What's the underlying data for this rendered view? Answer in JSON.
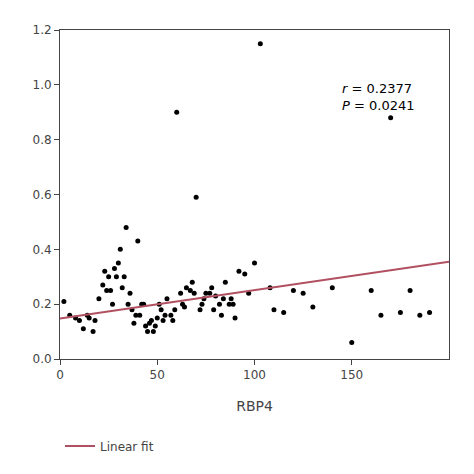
{
  "chart_data": {
    "type": "scatter",
    "xlabel": "RBP4",
    "series": [
      {
        "type": "scatter",
        "color": "#000000",
        "x": [
          2,
          5,
          8,
          10,
          12,
          14,
          15,
          17,
          18,
          20,
          22,
          23,
          24,
          25,
          26,
          27,
          28,
          29,
          30,
          31,
          32,
          33,
          34,
          35,
          36,
          37,
          38,
          39,
          40,
          41,
          42,
          43,
          44,
          45,
          46,
          47,
          48,
          49,
          50,
          51,
          52,
          53,
          54,
          55,
          57,
          58,
          59,
          60,
          62,
          63,
          64,
          65,
          67,
          68,
          69,
          70,
          72,
          73,
          74,
          75,
          77,
          78,
          79,
          80,
          82,
          83,
          84,
          85,
          87,
          88,
          89,
          90,
          92,
          95,
          97,
          100,
          103,
          108,
          110,
          115,
          120,
          125,
          130,
          140,
          150,
          160,
          165,
          170,
          175,
          180,
          185,
          190
        ],
        "values": [
          0.21,
          0.16,
          0.15,
          0.14,
          0.11,
          0.16,
          0.15,
          0.1,
          0.14,
          0.22,
          0.27,
          0.32,
          0.25,
          0.3,
          0.25,
          0.2,
          0.33,
          0.3,
          0.35,
          0.4,
          0.26,
          0.3,
          0.48,
          0.2,
          0.24,
          0.18,
          0.13,
          0.16,
          0.43,
          0.16,
          0.2,
          0.2,
          0.12,
          0.1,
          0.13,
          0.14,
          0.1,
          0.12,
          0.15,
          0.2,
          0.18,
          0.14,
          0.16,
          0.22,
          0.16,
          0.14,
          0.18,
          0.9,
          0.24,
          0.2,
          0.19,
          0.26,
          0.25,
          0.28,
          0.24,
          0.59,
          0.18,
          0.2,
          0.22,
          0.24,
          0.24,
          0.26,
          0.18,
          0.23,
          0.2,
          0.16,
          0.22,
          0.28,
          0.2,
          0.22,
          0.2,
          0.15,
          0.32,
          0.31,
          0.24,
          0.35,
          1.15,
          0.26,
          0.18,
          0.17,
          0.25,
          0.24,
          0.19,
          0.26,
          0.06,
          0.25,
          0.16,
          0.88,
          0.17,
          0.25,
          0.16,
          0.17
        ]
      },
      {
        "name": "Linear fit",
        "type": "line",
        "color": "#b05060",
        "x": [
          0,
          200
        ],
        "values": [
          0.148,
          0.355
        ]
      }
    ],
    "annotations": [
      "r = 0.2377",
      "P = 0.0241"
    ],
    "xlim": [
      0,
      200
    ],
    "ylim": [
      0,
      1.2
    ],
    "xticks": [
      0,
      50,
      100,
      150
    ],
    "yticks": [
      {
        "value": 0,
        "label": "0.0"
      },
      0.2,
      0.4,
      0.6,
      0.8,
      {
        "value": 1,
        "label": "1.0"
      },
      1.2
    ],
    "grid": false,
    "legend": "bottom"
  }
}
